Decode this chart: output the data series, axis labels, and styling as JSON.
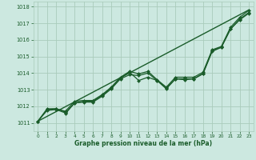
{
  "title": "Graphe pression niveau de la mer (hPa)",
  "background_color": "#cce8e0",
  "grid_color": "#aaccbb",
  "line_color": "#1a5c2a",
  "xlim": [
    -0.5,
    23.5
  ],
  "ylim": [
    1010.5,
    1018.3
  ],
  "xticks": [
    0,
    1,
    2,
    3,
    4,
    5,
    6,
    7,
    8,
    9,
    10,
    11,
    12,
    13,
    14,
    15,
    16,
    17,
    18,
    19,
    20,
    21,
    22,
    23
  ],
  "yticks": [
    1011,
    1012,
    1013,
    1014,
    1015,
    1016,
    1017,
    1018
  ],
  "straight_line": {
    "x": [
      0,
      23
    ],
    "y": [
      1011.1,
      1017.8
    ]
  },
  "series": [
    {
      "x": [
        0,
        1,
        2,
        3,
        3,
        4,
        5,
        6,
        7,
        8,
        9,
        10,
        11,
        12,
        13,
        14,
        15,
        16,
        17,
        18,
        19,
        20,
        21,
        22,
        23
      ],
      "y": [
        1011.1,
        1011.8,
        1011.85,
        1011.65,
        1011.55,
        1012.2,
        1012.25,
        1012.25,
        1012.6,
        1013.05,
        1013.65,
        1013.9,
        1013.85,
        1014.0,
        1013.55,
        1013.05,
        1013.65,
        1013.65,
        1013.65,
        1013.95,
        1015.3,
        1015.55,
        1016.65,
        1017.2,
        1017.6
      ],
      "marker": "D",
      "markersize": 2.0,
      "linewidth": 0.9
    },
    {
      "x": [
        0,
        1,
        2,
        3,
        4,
        5,
        6,
        7,
        8,
        9,
        10,
        11,
        12,
        13,
        14,
        15,
        16,
        17,
        18,
        19,
        20,
        21,
        22,
        23
      ],
      "y": [
        1011.1,
        1011.75,
        1011.8,
        1011.6,
        1012.2,
        1012.3,
        1012.3,
        1012.65,
        1013.1,
        1013.7,
        1014.05,
        1013.55,
        1013.75,
        1013.55,
        1013.1,
        1013.65,
        1013.6,
        1013.65,
        1013.98,
        1015.35,
        1015.55,
        1016.65,
        1017.25,
        1017.65
      ],
      "marker": "D",
      "markersize": 2.0,
      "linewidth": 0.9
    },
    {
      "x": [
        0,
        1,
        2,
        3,
        4,
        5,
        6,
        7,
        8,
        9,
        10,
        11,
        12,
        13,
        14,
        15,
        16,
        17,
        18,
        19,
        20,
        21,
        22,
        23
      ],
      "y": [
        1011.1,
        1011.85,
        1011.85,
        1011.7,
        1012.3,
        1012.35,
        1012.35,
        1012.7,
        1013.15,
        1013.75,
        1014.1,
        1013.95,
        1014.1,
        1013.6,
        1013.15,
        1013.75,
        1013.75,
        1013.75,
        1014.05,
        1015.4,
        1015.6,
        1016.75,
        1017.35,
        1017.78
      ],
      "marker": "D",
      "markersize": 2.0,
      "linewidth": 0.9
    }
  ]
}
